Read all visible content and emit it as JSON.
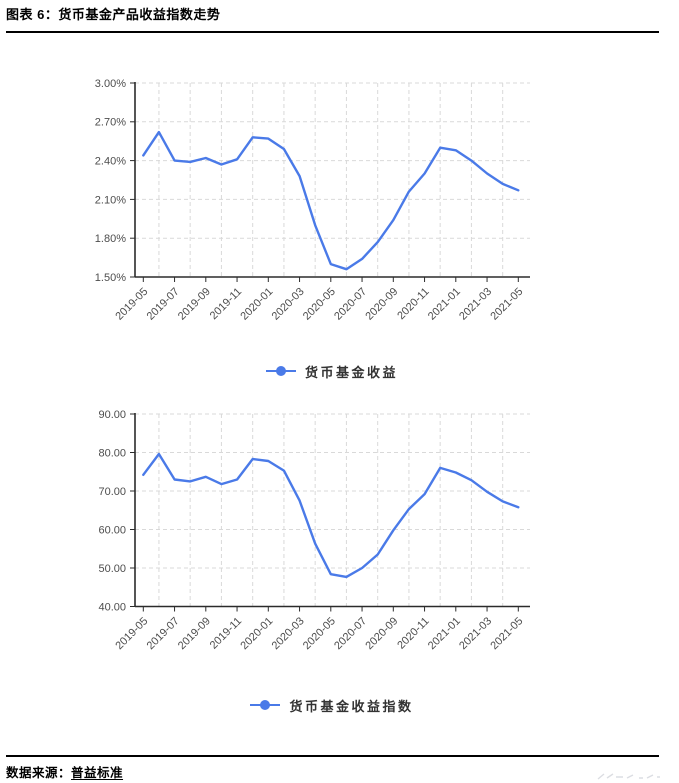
{
  "header": {
    "title": "图表 6：货币基金产品收益指数走势"
  },
  "footer": {
    "source_label": "数据来源：",
    "source_name": "普益标准"
  },
  "colors": {
    "line": "#4a7ae8",
    "grid": "#d9d9d9",
    "axis": "#2b2b2b",
    "tick_label": "#4d4d4d",
    "legend_text": "#333333",
    "heading_text": "#000000"
  },
  "chart_data": [
    {
      "type": "line",
      "title": "",
      "legend": "货币基金收益",
      "legend_position": "bottom",
      "grid": true,
      "xlabel": "",
      "ylabel": "",
      "x": [
        "2019-05",
        "2019-06",
        "2019-07",
        "2019-08",
        "2019-09",
        "2019-10",
        "2019-11",
        "2019-12",
        "2020-01",
        "2020-02",
        "2020-03",
        "2020-04",
        "2020-05",
        "2020-06",
        "2020-07",
        "2020-08",
        "2020-09",
        "2020-10",
        "2020-11",
        "2020-12",
        "2021-01",
        "2021-02",
        "2021-03",
        "2021-04",
        "2021-05"
      ],
      "x_tick_labels": [
        "2019-05",
        "2019-07",
        "2019-09",
        "2019-11",
        "2020-01",
        "2020-03",
        "2020-05",
        "2020-07",
        "2020-09",
        "2020-11",
        "2021-01",
        "2021-03",
        "2021-05"
      ],
      "values": [
        2.44,
        2.62,
        2.4,
        2.39,
        2.42,
        2.37,
        2.41,
        2.58,
        2.57,
        2.49,
        2.28,
        1.9,
        1.6,
        1.56,
        1.64,
        1.77,
        1.94,
        2.16,
        2.3,
        2.5,
        2.48,
        2.4,
        2.3,
        2.22,
        2.17
      ],
      "ylim": [
        1.5,
        3.0
      ],
      "y_tick_labels": [
        "3.00%",
        "2.70%",
        "2.40%",
        "2.10%",
        "1.80%",
        "1.50%"
      ]
    },
    {
      "type": "line",
      "title": "",
      "legend": "货币基金收益指数",
      "legend_position": "bottom",
      "grid": true,
      "xlabel": "",
      "ylabel": "",
      "x": [
        "2019-05",
        "2019-06",
        "2019-07",
        "2019-08",
        "2019-09",
        "2019-10",
        "2019-11",
        "2019-12",
        "2020-01",
        "2020-02",
        "2020-03",
        "2020-04",
        "2020-05",
        "2020-06",
        "2020-07",
        "2020-08",
        "2020-09",
        "2020-10",
        "2020-11",
        "2020-12",
        "2021-01",
        "2021-02",
        "2021-03",
        "2021-04",
        "2021-05"
      ],
      "x_tick_labels": [
        "2019-05",
        "2019-07",
        "2019-09",
        "2019-11",
        "2020-01",
        "2020-03",
        "2020-05",
        "2020-07",
        "2020-09",
        "2020-11",
        "2021-01",
        "2021-03",
        "2021-05"
      ],
      "values": [
        74.2,
        79.6,
        73.0,
        72.5,
        73.7,
        71.8,
        73.0,
        78.3,
        77.8,
        75.3,
        67.5,
        56.3,
        48.4,
        47.7,
        50.0,
        53.5,
        59.8,
        65.3,
        69.2,
        76.0,
        74.8,
        72.8,
        69.8,
        67.3,
        65.8
      ],
      "ylim": [
        40.0,
        90.0
      ],
      "y_tick_labels": [
        "90.00",
        "80.00",
        "70.00",
        "60.00",
        "50.00",
        "40.00"
      ]
    }
  ]
}
